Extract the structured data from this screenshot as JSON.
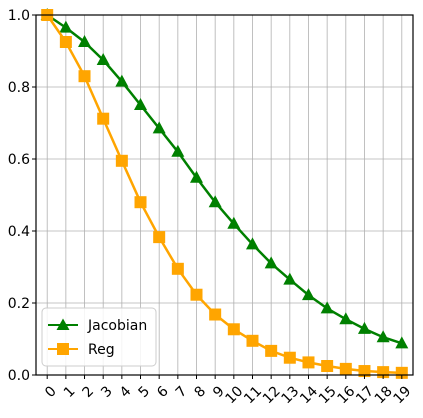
{
  "chart_data": {
    "type": "line",
    "title": "",
    "xlabel": "",
    "ylabel": "",
    "x": [
      0,
      1,
      2,
      3,
      4,
      5,
      6,
      7,
      8,
      9,
      10,
      11,
      12,
      13,
      14,
      15,
      16,
      17,
      18,
      19
    ],
    "x_tick_labels": [
      "0",
      "1",
      "2",
      "3",
      "4",
      "5",
      "6",
      "7",
      "8",
      "9",
      "10",
      "11",
      "12",
      "13",
      "14",
      "15",
      "16",
      "17",
      "18",
      "19"
    ],
    "y_tick_labels": [
      "0.0",
      "0.2",
      "0.4",
      "0.6",
      "0.8",
      "1.0"
    ],
    "y_ticks": [
      0.0,
      0.2,
      0.4,
      0.6,
      0.8,
      1.0
    ],
    "xlim": [
      -0.6,
      19.6
    ],
    "ylim": [
      0.0,
      1.0
    ],
    "grid": true,
    "legend_position": "bottom-left",
    "series": [
      {
        "name": "Jacobian",
        "color": "#008000",
        "marker": "triangle",
        "values": [
          1.0,
          0.965,
          0.925,
          0.875,
          0.815,
          0.75,
          0.685,
          0.62,
          0.548,
          0.48,
          0.42,
          0.363,
          0.31,
          0.265,
          0.222,
          0.185,
          0.155,
          0.128,
          0.105,
          0.088
        ]
      },
      {
        "name": "Reg",
        "color": "#FFA500",
        "marker": "square",
        "values": [
          1.0,
          0.925,
          0.83,
          0.712,
          0.595,
          0.48,
          0.383,
          0.295,
          0.223,
          0.168,
          0.127,
          0.095,
          0.067,
          0.048,
          0.035,
          0.025,
          0.017,
          0.011,
          0.008,
          0.006
        ]
      }
    ]
  }
}
